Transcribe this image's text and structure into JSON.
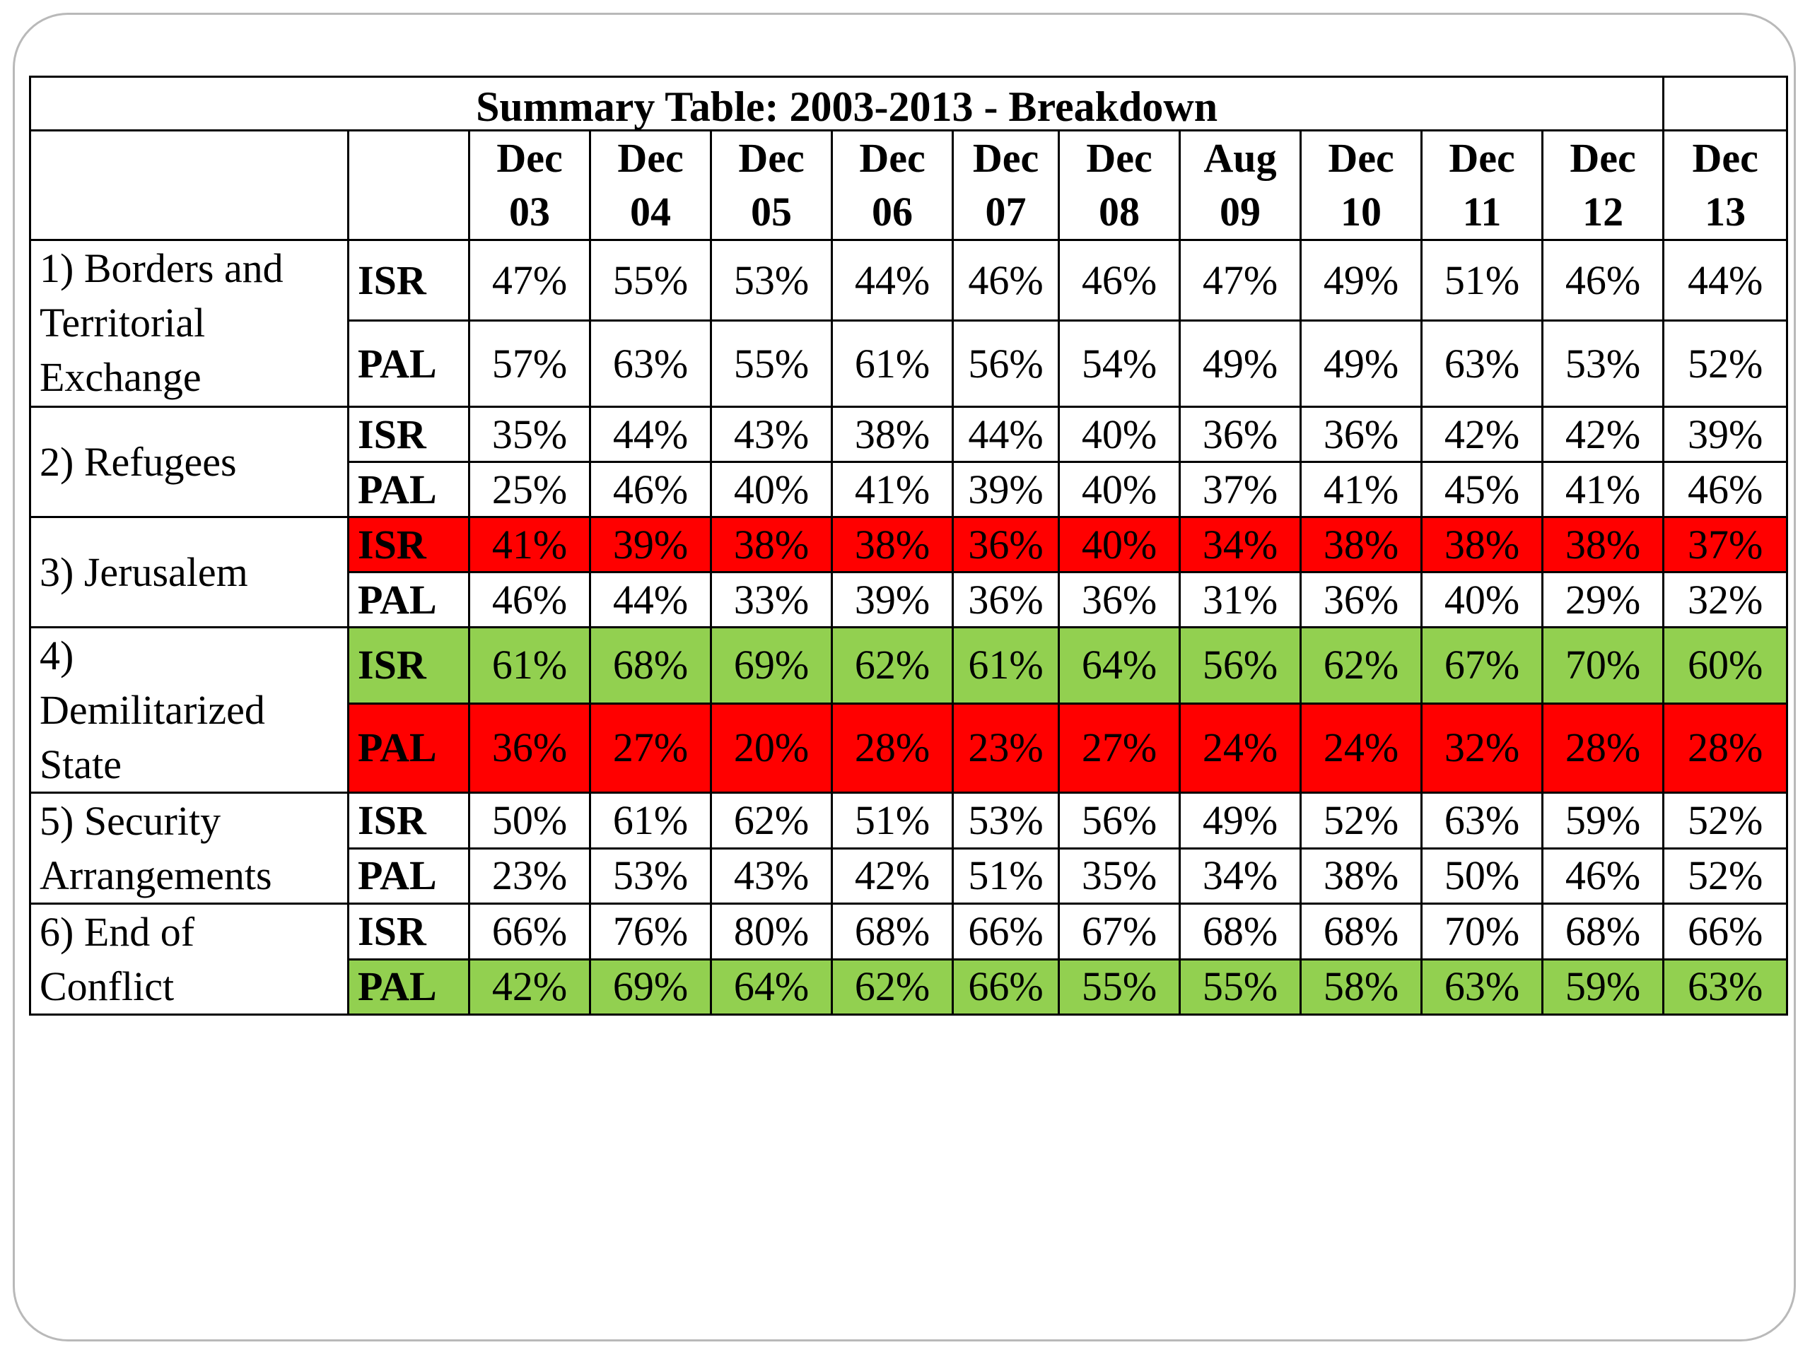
{
  "title": "Summary Table: 2003-2013 - Breakdown",
  "dates": [
    {
      "month": "Dec",
      "year": "03"
    },
    {
      "month": "Dec",
      "year": "04"
    },
    {
      "month": "Dec",
      "year": "05"
    },
    {
      "month": "Dec",
      "year": "06"
    },
    {
      "month": "Dec",
      "year": "07"
    },
    {
      "month": "Dec",
      "year": "08"
    },
    {
      "month": "Aug",
      "year": "09"
    },
    {
      "month": "Dec",
      "year": "10"
    },
    {
      "month": "Dec",
      "year": "11"
    },
    {
      "month": "Dec",
      "year": "12"
    },
    {
      "month": "Dec",
      "year": "13"
    }
  ],
  "colors": {
    "red": "#ff0000",
    "green": "#92d050"
  },
  "topics": [
    {
      "lines": [
        "1) Borders and",
        "Territorial",
        "Exchange"
      ],
      "rows": [
        {
          "party": "ISR",
          "highlight": "none",
          "values": [
            "47%",
            "55%",
            "53%",
            "44%",
            "46%",
            "46%",
            "47%",
            "49%",
            "51%",
            "46%",
            "44%"
          ]
        },
        {
          "party": "PAL",
          "highlight": "none",
          "values": [
            "57%",
            "63%",
            "55%",
            "61%",
            "56%",
            "54%",
            "49%",
            "49%",
            "63%",
            "53%",
            "52%"
          ]
        }
      ]
    },
    {
      "lines": [
        "2) Refugees"
      ],
      "rows": [
        {
          "party": "ISR",
          "highlight": "none",
          "values": [
            "35%",
            "44%",
            "43%",
            "38%",
            "44%",
            "40%",
            "36%",
            "36%",
            "42%",
            "42%",
            "39%"
          ]
        },
        {
          "party": "PAL",
          "highlight": "none",
          "values": [
            "25%",
            "46%",
            "40%",
            "41%",
            "39%",
            "40%",
            "37%",
            "41%",
            "45%",
            "41%",
            "46%"
          ]
        }
      ]
    },
    {
      "lines": [
        "3) Jerusalem"
      ],
      "rows": [
        {
          "party": "ISR",
          "highlight": "red",
          "values": [
            "41%",
            "39%",
            "38%",
            "38%",
            "36%",
            "40%",
            "34%",
            "38%",
            "38%",
            "38%",
            "37%"
          ]
        },
        {
          "party": "PAL",
          "highlight": "none",
          "values": [
            "46%",
            "44%",
            "33%",
            "39%",
            "36%",
            "36%",
            "31%",
            "36%",
            "40%",
            "29%",
            "32%"
          ]
        }
      ]
    },
    {
      "lines": [
        "4)",
        "Demilitarized",
        "State"
      ],
      "rows": [
        {
          "party": "ISR",
          "highlight": "green",
          "values": [
            "61%",
            "68%",
            "69%",
            "62%",
            "61%",
            "64%",
            "56%",
            "62%",
            "67%",
            "70%",
            "60%"
          ]
        },
        {
          "party": "PAL",
          "highlight": "red",
          "values": [
            "36%",
            "27%",
            "20%",
            "28%",
            "23%",
            "27%",
            "24%",
            "24%",
            "32%",
            "28%",
            "28%"
          ]
        }
      ]
    },
    {
      "lines": [
        "5) Security",
        "Arrangements"
      ],
      "rows": [
        {
          "party": "ISR",
          "highlight": "none",
          "values": [
            "50%",
            "61%",
            "62%",
            "51%",
            "53%",
            "56%",
            "49%",
            "52%",
            "63%",
            "59%",
            "52%"
          ]
        },
        {
          "party": "PAL",
          "highlight": "none",
          "values": [
            "23%",
            "53%",
            "43%",
            "42%",
            "51%",
            "35%",
            "34%",
            "38%",
            "50%",
            "46%",
            "52%"
          ]
        }
      ]
    },
    {
      "lines": [
        "6) End of",
        "Conflict"
      ],
      "rows": [
        {
          "party": "ISR",
          "highlight": "none",
          "values": [
            "66%",
            "76%",
            "80%",
            "68%",
            "66%",
            "67%",
            "68%",
            "68%",
            "70%",
            "68%",
            "66%"
          ]
        },
        {
          "party": "PAL",
          "highlight": "green",
          "values": [
            "42%",
            "69%",
            "64%",
            "62%",
            "66%",
            "55%",
            "55%",
            "58%",
            "63%",
            "59%",
            "63%"
          ]
        }
      ]
    }
  ]
}
